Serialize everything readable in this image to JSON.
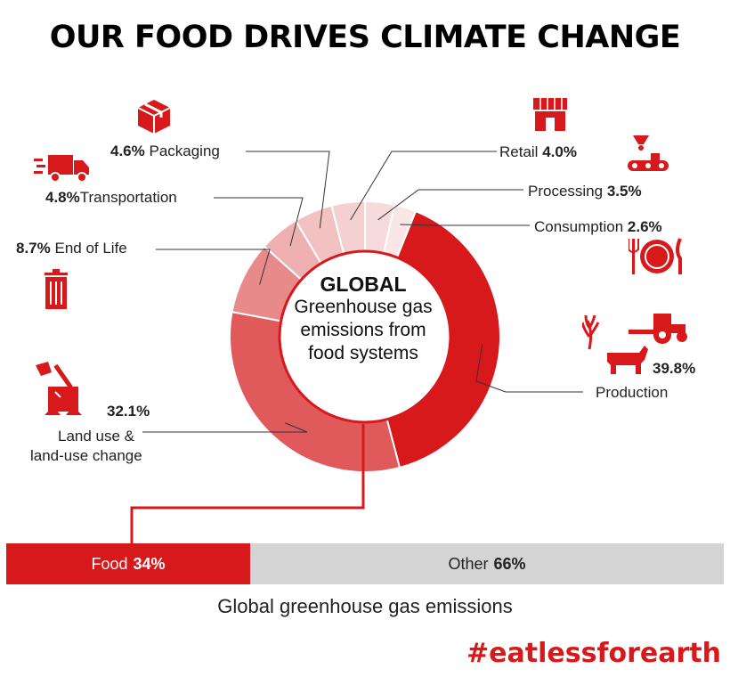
{
  "title": "OUR FOOD DRIVES CLIMATE CHANGE",
  "colors": {
    "accent": "#d7191c",
    "other": "#d4d4d4"
  },
  "chart_data": [
    {
      "type": "pie",
      "center_label": {
        "line1": "GLOBAL",
        "line2": "Greenhouse gas emissions from food systems"
      },
      "series": [
        {
          "name": "Production",
          "value": 39.8,
          "value_label": "39.8%",
          "color": "#d7191c",
          "icon": "farm-icon"
        },
        {
          "name": "Land use & land-use change",
          "line1": "Land use &",
          "line2": "land-use change",
          "value": 32.1,
          "value_label": "32.1%",
          "color": "#e05a5c",
          "icon": "tree-stump-axe-icon"
        },
        {
          "name": "End of Life",
          "value": 8.7,
          "value_label": "8.7%",
          "color": "#e8898a",
          "icon": "trash-bin-icon"
        },
        {
          "name": "Transportation",
          "value": 4.8,
          "value_label": "4.8%",
          "color": "#efb0b1",
          "icon": "truck-icon"
        },
        {
          "name": "Packaging",
          "value": 4.6,
          "value_label": "4.6%",
          "color": "#f2c1c2",
          "icon": "package-icon"
        },
        {
          "name": "Retail",
          "value": 4.0,
          "value_label": "4.0%",
          "color": "#f5d0d1",
          "icon": "store-icon"
        },
        {
          "name": "Processing",
          "value": 3.5,
          "value_label": "3.5%",
          "color": "#f7dbdc",
          "icon": "processing-machine-icon"
        },
        {
          "name": "Consumption",
          "value": 2.6,
          "value_label": "2.6%",
          "color": "#fae6e6",
          "icon": "plate-cutlery-icon"
        }
      ]
    },
    {
      "type": "bar",
      "title": "Global greenhouse gas emissions",
      "categories": [
        "Food",
        "Other"
      ],
      "values": [
        34,
        66
      ],
      "value_labels": [
        "34%",
        "66%"
      ],
      "colors": [
        "#d7191c",
        "#d4d4d4"
      ]
    }
  ],
  "hashtag": "#eatlessforearth"
}
